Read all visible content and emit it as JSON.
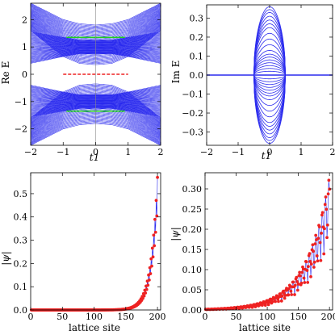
{
  "colors": {
    "band": "#2a2aee",
    "flat_band": "#22cc22",
    "zero_mode": "#ee2222",
    "marker": "#ee2222",
    "axis": "#000000",
    "origin_line": "#888888"
  },
  "chart_data": [
    {
      "id": "re-e",
      "type": "line",
      "title": "",
      "xlabel": "t1",
      "ylabel": "Re E",
      "xlim": [
        -2,
        2
      ],
      "ylim": [
        -2.6,
        2.6
      ],
      "xticks": [
        -2,
        -1,
        0,
        1,
        2
      ],
      "xtick_labels": [
        "−2",
        "−1",
        "0",
        "1",
        "2"
      ],
      "yticks": [
        -2,
        -1,
        0,
        1,
        2
      ],
      "ytick_labels": [
        "−2",
        "−1",
        "0",
        "1",
        "2"
      ],
      "grid": false,
      "series": [
        {
          "kind": "bands",
          "color_key": "band",
          "count": 40,
          "x": [
            -2,
            -1,
            -0.5,
            0,
            0.5,
            1,
            2
          ],
          "upper_outer": [
            2.6,
            2.0,
            1.85,
            1.8,
            1.85,
            2.0,
            2.6
          ],
          "upper_inner": [
            1.6,
            0.65,
            0.4,
            0.35,
            0.4,
            0.65,
            1.6
          ],
          "lower_outer": [
            -0.4,
            -0.65,
            -0.75,
            -0.75,
            -0.75,
            -0.65,
            -0.4
          ],
          "lower_inner": [
            -1.55,
            -1.35,
            -1.25,
            -1.25,
            -1.25,
            -1.35,
            -1.55
          ]
        },
        {
          "kind": "segment",
          "color_key": "flat_band",
          "x": [
            -0.9,
            0.9
          ],
          "y": 1.35
        },
        {
          "kind": "segment",
          "color_key": "flat_band",
          "x": [
            -0.9,
            0.9
          ],
          "y": -1.35
        },
        {
          "kind": "segment",
          "color_key": "zero_mode",
          "dashed": true,
          "x": [
            -1.0,
            1.0
          ],
          "y": 0
        }
      ]
    },
    {
      "id": "im-e",
      "type": "line",
      "title": "",
      "xlabel": "t1",
      "ylabel": "Im E",
      "xlim": [
        -2,
        2
      ],
      "ylim": [
        -0.37,
        0.37
      ],
      "xticks": [
        -2,
        -1,
        0,
        1,
        2
      ],
      "xtick_labels": [
        "−2",
        "−1",
        "0",
        "1",
        "2"
      ],
      "yticks": [
        -0.3,
        -0.2,
        -0.1,
        0,
        0.1,
        0.2,
        0.3
      ],
      "ytick_labels": [
        "−0.3",
        "−0.2",
        "−0.1",
        "0.0",
        "0.1",
        "0.2",
        "0.3"
      ],
      "grid": false,
      "series": [
        {
          "kind": "lobes",
          "color_key": "band",
          "x_range": [
            -0.5,
            0.5
          ],
          "amplitudes": [
            0.36,
            0.345,
            0.33,
            0.31,
            0.29,
            0.27,
            0.25,
            0.22,
            0.19,
            0.16,
            0.13,
            0.11,
            0.095,
            0.08,
            0.065,
            0.05,
            0.035,
            0.02
          ]
        },
        {
          "kind": "segment",
          "color_key": "band",
          "x": [
            -2,
            2
          ],
          "y": 0
        }
      ]
    },
    {
      "id": "psi-1",
      "type": "scatter",
      "title": "",
      "xlabel": "lattice site",
      "ylabel": "|ψ|",
      "xlim": [
        0,
        205
      ],
      "ylim": [
        0,
        0.59
      ],
      "xticks": [
        0,
        50,
        100,
        150,
        200
      ],
      "xtick_labels": [
        "0",
        "50",
        "100",
        "150",
        "200"
      ],
      "yticks": [
        0.0,
        0.1,
        0.2,
        0.3,
        0.4,
        0.5
      ],
      "ytick_labels": [
        "0.0",
        "0.1",
        "0.2",
        "0.3",
        "0.4",
        "0.5"
      ],
      "grid": false,
      "profile": "edge",
      "n_sites": 200,
      "peak": 0.57,
      "decay_sites": 10.5
    },
    {
      "id": "psi-2",
      "type": "scatter",
      "title": "",
      "xlabel": "lattice site",
      "ylabel": "|ψ|",
      "xlim": [
        0,
        205
      ],
      "ylim": [
        0,
        0.34
      ],
      "xticks": [
        0,
        50,
        100,
        150,
        200
      ],
      "xtick_labels": [
        "0",
        "50",
        "100",
        "150",
        "200"
      ],
      "yticks": [
        0.0,
        0.05,
        0.1,
        0.15,
        0.2,
        0.25,
        0.3
      ],
      "ytick_labels": [
        "0.00",
        "0.05",
        "0.10",
        "0.15",
        "0.20",
        "0.25",
        "0.30"
      ],
      "grid": false,
      "profile": "oscillating",
      "n_sites": 200,
      "peak": 0.33,
      "decay_sites": 38
    }
  ]
}
